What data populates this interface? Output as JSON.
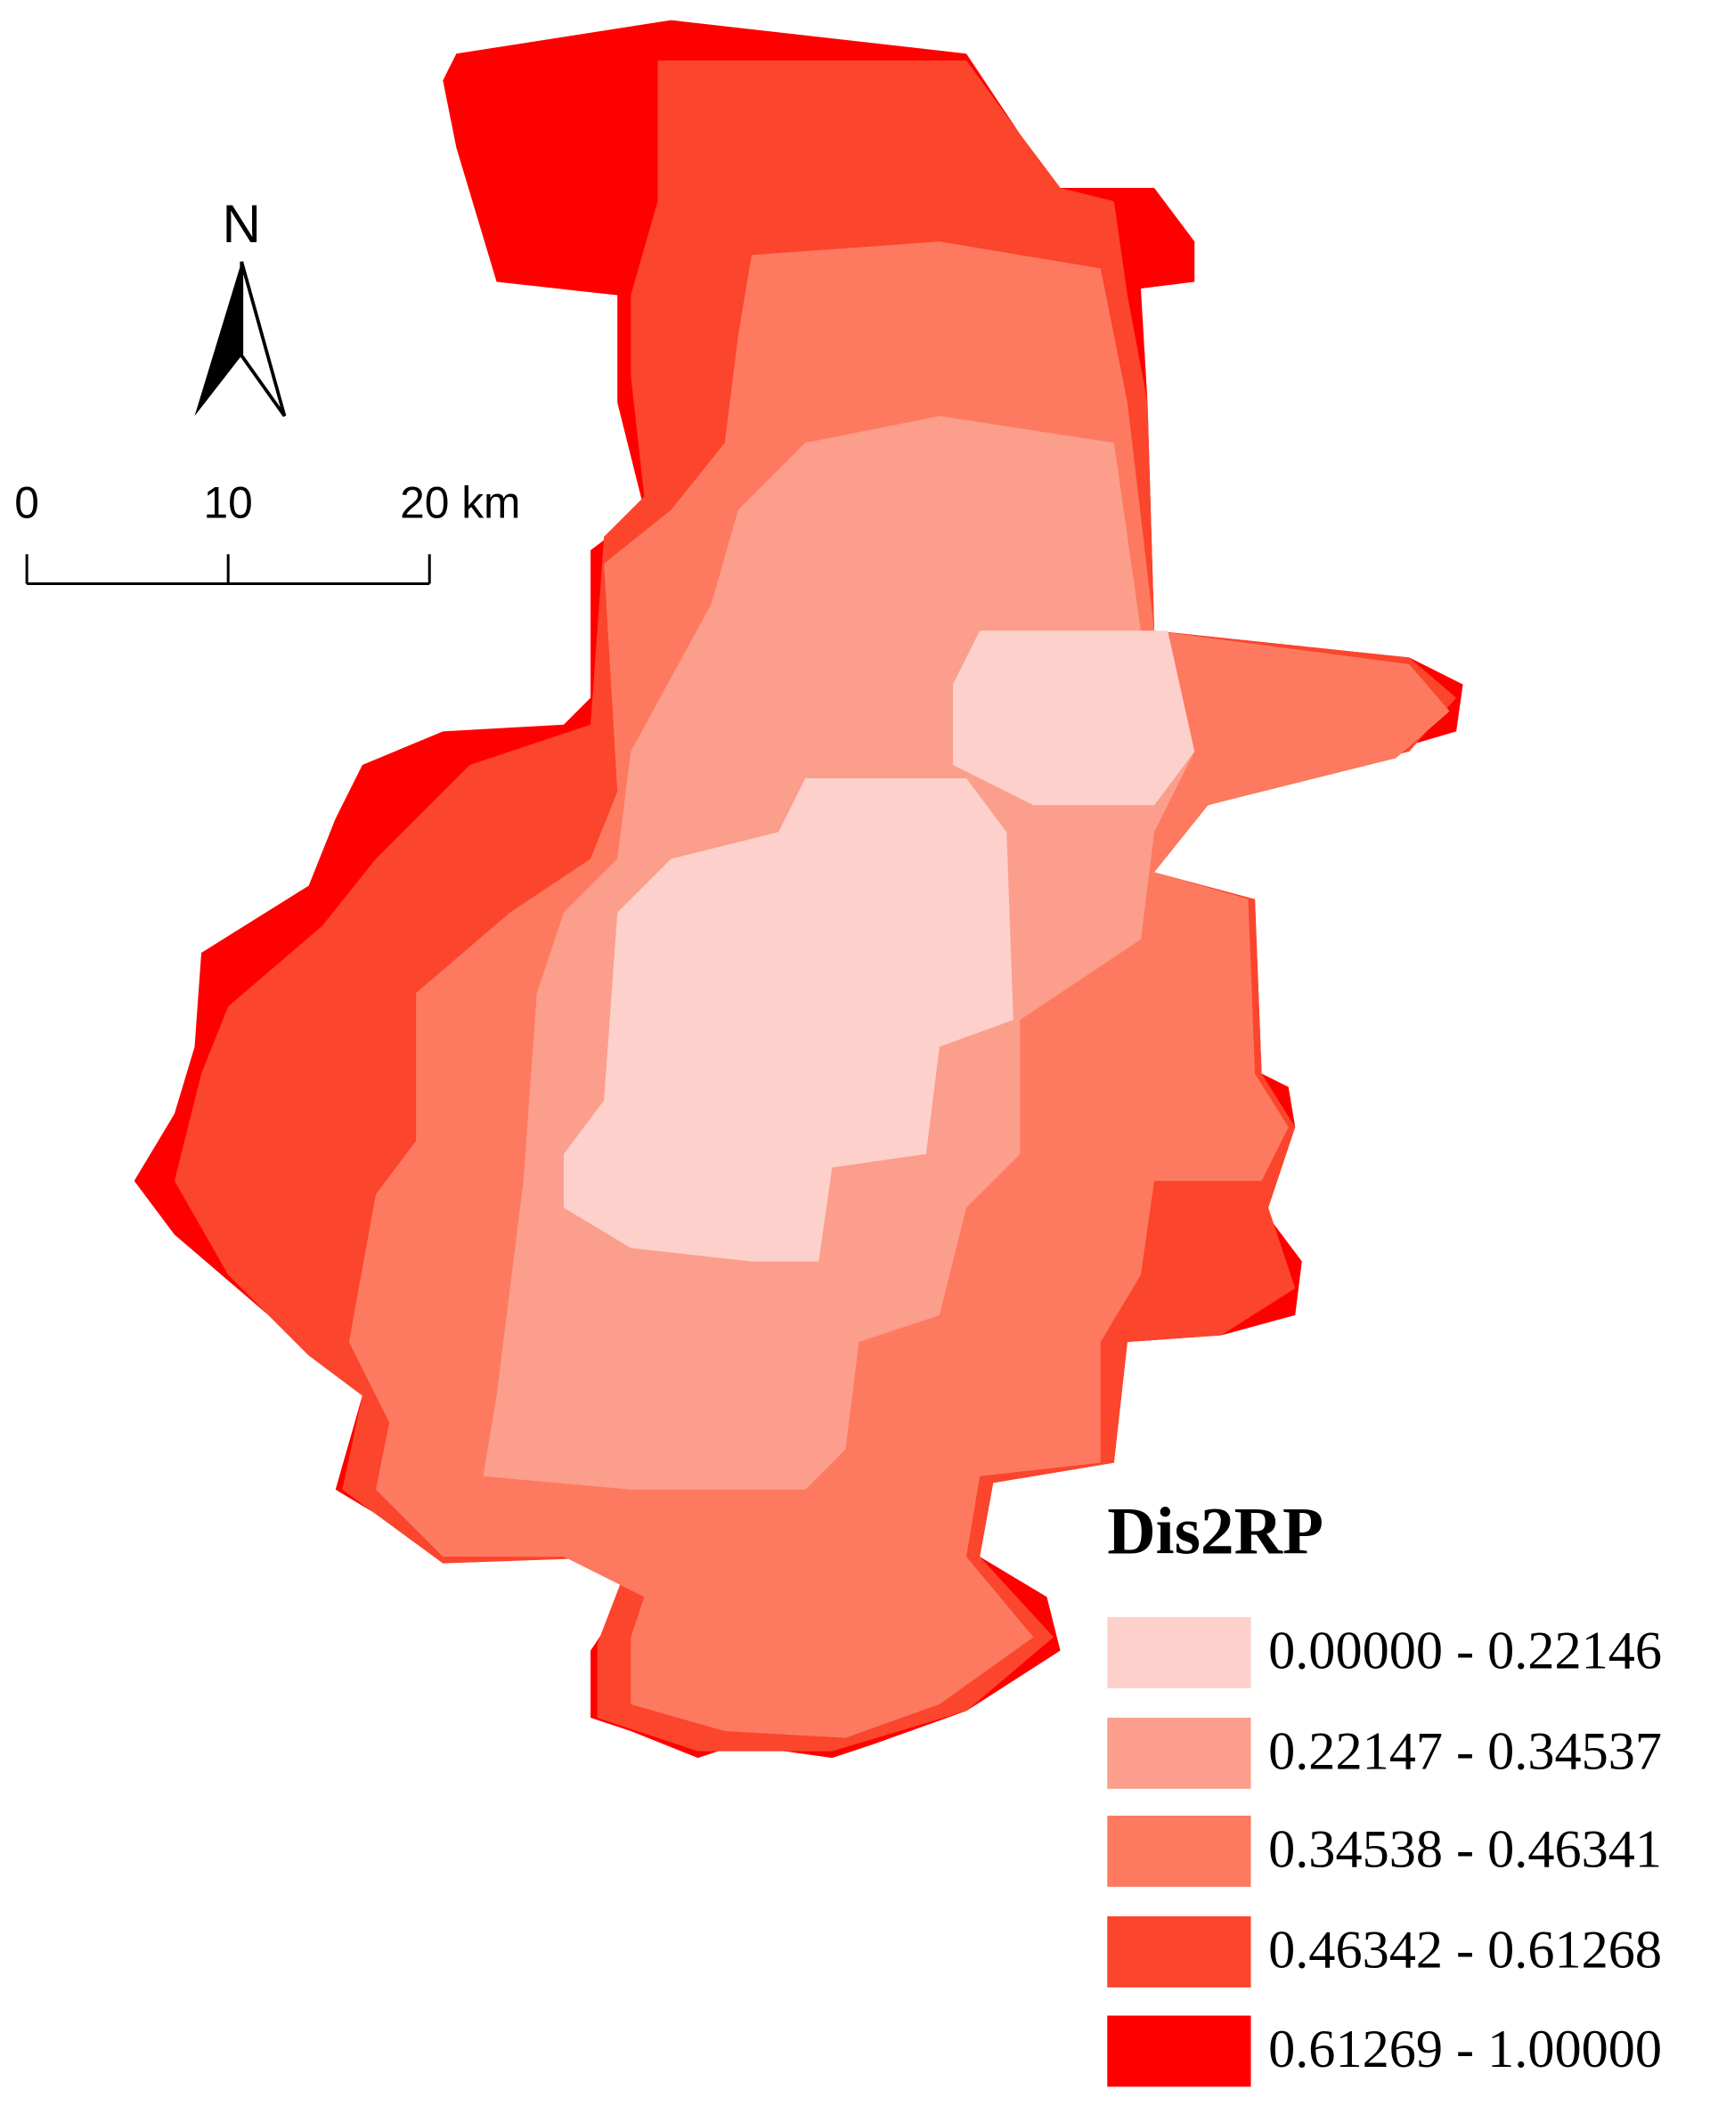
{
  "north_label": "N",
  "scale_bar": {
    "labels": [
      "0",
      "10",
      "20 km"
    ]
  },
  "legend": {
    "title": "Dis2RP",
    "items": [
      {
        "label": "0.00000 - 0.22146",
        "color": "#fdd0cb"
      },
      {
        "label": "0.22147 - 0.34537",
        "color": "#fb9e8b"
      },
      {
        "label": "0.34538 - 0.46341",
        "color": "#fd7a60"
      },
      {
        "label": "0.46342 - 0.61268",
        "color": "#fb452c"
      },
      {
        "label": "0.61269 - 1.00000",
        "color": "#fe0000"
      }
    ]
  }
}
